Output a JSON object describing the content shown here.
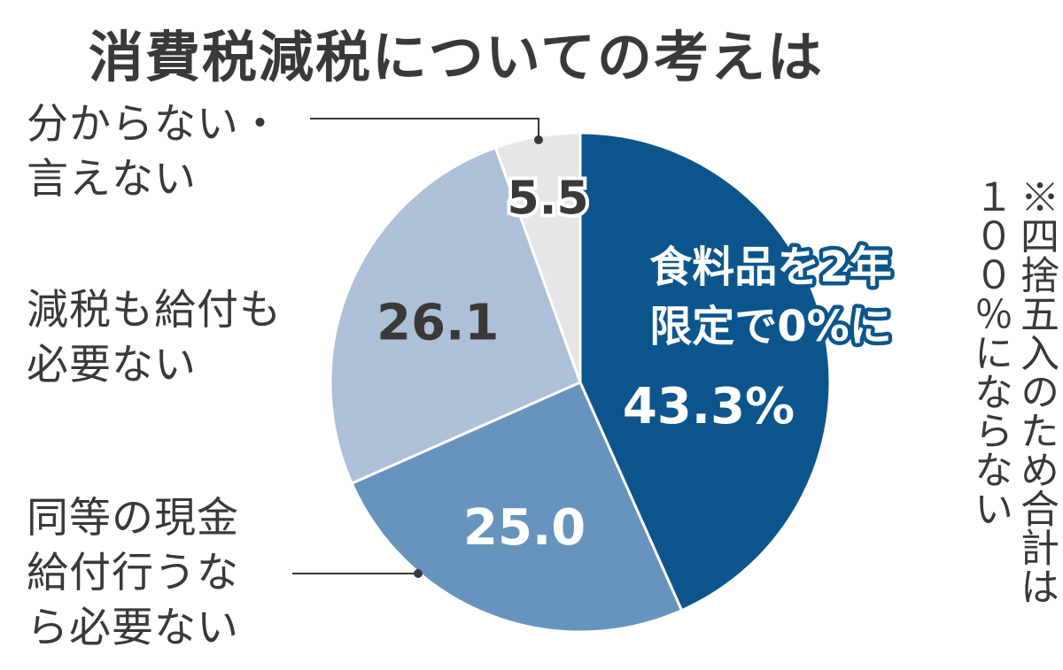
{
  "chart_data": {
    "type": "pie",
    "title": "消費税減税についての考えは",
    "slices": [
      {
        "label": "食料品を２年限定で０％に",
        "value": 43.3,
        "display": "43.3%",
        "color": "#0c558c"
      },
      {
        "label": "同等の現金給付行うなら必要ない",
        "value": 25.0,
        "display": "25.0",
        "color": "#6794bd"
      },
      {
        "label": "減税も給付も必要ない",
        "value": 26.1,
        "display": "26.1",
        "color": "#aebfd8"
      },
      {
        "label": "分からない・言えない",
        "value": 5.5,
        "display": "5.5",
        "color": "#e5e6e8"
      }
    ]
  },
  "inner_label": {
    "line1": "食料品を",
    "line1_num": "2",
    "line1_end": "年",
    "line2": "限定で",
    "line2_mid": "0",
    "line2_end": "%に"
  },
  "outer_labels": {
    "dont_know": "分からない・\n言えない",
    "neither": "減税も給付も\n必要ない",
    "cash": "同等の現金\n給付行うな\nら必要ない"
  },
  "note": {
    "col1": "※四捨五入のため合計は",
    "col2": "１００％にならない"
  }
}
